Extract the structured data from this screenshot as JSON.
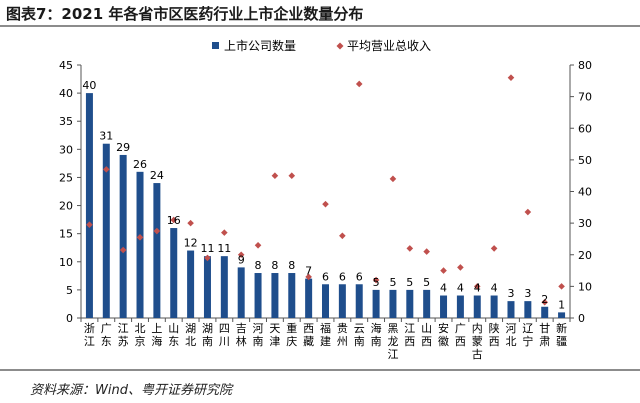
{
  "figure_title": "图表7：2021 年各省市区医药行业上市企业数量分布",
  "source_note": "资料来源：Wind、粤开证券研究院",
  "colors": {
    "bar": "#1f4e8c",
    "marker": "#c0504d",
    "axis": "#555555",
    "rule": "#8c8c8c"
  },
  "chart_data": {
    "type": "bar",
    "title": "图表7：2021 年各省市区医药行业上市企业数量分布",
    "legend_position": "top",
    "categories": [
      "浙江",
      "广东",
      "江苏",
      "北京",
      "上海",
      "山东",
      "湖北",
      "湖南",
      "四川",
      "吉林",
      "河南",
      "天津",
      "重庆",
      "西藏",
      "福建",
      "贵州",
      "云南",
      "海南",
      "黑龙江",
      "江西",
      "山西",
      "安徽",
      "广西",
      "内蒙古",
      "陕西",
      "河北",
      "辽宁",
      "甘肃",
      "新疆"
    ],
    "series": [
      {
        "name": "上市公司数量",
        "type": "bar",
        "axis": "left",
        "values": [
          40,
          31,
          29,
          26,
          24,
          16,
          12,
          11,
          11,
          9,
          8,
          8,
          8,
          7,
          6,
          6,
          6,
          5,
          5,
          5,
          5,
          4,
          4,
          4,
          4,
          3,
          3,
          2,
          1
        ]
      },
      {
        "name": "平均营业总收入",
        "type": "scatter",
        "axis": "right",
        "values": [
          29.5,
          47,
          21.5,
          25.5,
          27.5,
          31,
          30,
          19,
          27,
          20,
          23,
          45,
          45,
          13,
          36,
          26,
          74,
          12,
          44,
          22,
          21,
          15,
          16,
          10,
          22,
          76,
          33.5,
          5,
          10
        ]
      }
    ],
    "left_axis": {
      "ylim": [
        0,
        45
      ],
      "ticks": [
        0,
        5,
        10,
        15,
        20,
        25,
        30,
        35,
        40,
        45
      ]
    },
    "right_axis": {
      "ylim": [
        0,
        80
      ],
      "ticks": [
        0,
        10,
        20,
        30,
        40,
        50,
        60,
        70,
        80
      ]
    },
    "grid": false
  }
}
